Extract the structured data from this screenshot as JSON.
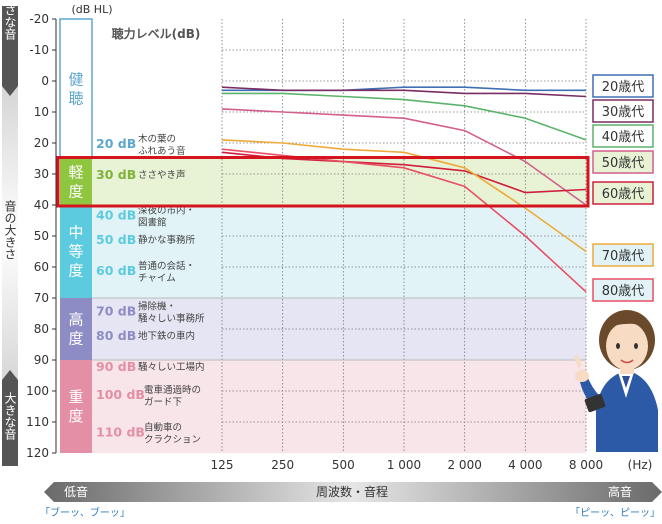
{
  "colors": {
    "kenchou": "#ffffff",
    "keido": "#e8f2d4",
    "chutou": "#e1f3f7",
    "koudo": "#e6e5f3",
    "juudo": "#f8e5ea",
    "kenchou_label": "#5da7cf",
    "keido_label": "#8fc63f",
    "chutou_label": "#5ccbe0",
    "koudo_label": "#8d8cc4",
    "juudo_label": "#e48fa5",
    "highlight": "#d4151d"
  },
  "side": {
    "top_label": "小さな音",
    "middle_label": "音の大きさ",
    "bottom_label": "大きな音"
  },
  "header": {
    "unit": "(dB HL)",
    "legend_title": "聴力レベル(dB)"
  },
  "zones": [
    {
      "label": "健聴",
      "from": -20,
      "to": 25,
      "color_key": "kenchou"
    },
    {
      "label": "軽度",
      "from": 25,
      "to": 40,
      "color_key": "keido"
    },
    {
      "label": "中等度",
      "from": 40,
      "to": 70,
      "color_key": "chutou"
    },
    {
      "label": "高度",
      "from": 70,
      "to": 90,
      "color_key": "koudo"
    },
    {
      "label": "重度",
      "from": 90,
      "to": 120,
      "color_key": "juudo"
    }
  ],
  "examples": [
    {
      "db": "20 dB",
      "text": [
        "木の葉の",
        "ふれあう音"
      ],
      "level": 20,
      "color": "#5da7cf"
    },
    {
      "db": "30 dB",
      "text": [
        "ささやき声"
      ],
      "level": 30,
      "color": "#7fb33a"
    },
    {
      "db": "40 dB",
      "text": [
        "深夜の市内・",
        "図書館"
      ],
      "level": 43,
      "color": "#5ccbe0"
    },
    {
      "db": "50 dB",
      "text": [
        "静かな事務所"
      ],
      "level": 51,
      "color": "#5ccbe0"
    },
    {
      "db": "60 dB",
      "text": [
        "普通の会話・",
        "チャイム"
      ],
      "level": 61,
      "color": "#5ccbe0"
    },
    {
      "db": "70 dB",
      "text": [
        "掃除機・",
        "騒々しい事務所"
      ],
      "level": 74,
      "color": "#8d8cc4"
    },
    {
      "db": "80 dB",
      "text": [
        "地下鉄の車内"
      ],
      "level": 82,
      "color": "#8d8cc4"
    },
    {
      "db": "90 dB",
      "text": [
        "騒々しい工場内"
      ],
      "level": 92,
      "color": "#e48fa5"
    },
    {
      "db": "100 dB",
      "text": [
        "電車通過時の",
        "ガード下"
      ],
      "level": 101,
      "color": "#e48fa5"
    },
    {
      "db": "110 dB",
      "text": [
        "自動車の",
        "クラクション"
      ],
      "level": 113,
      "color": "#e48fa5"
    }
  ],
  "x_axis": {
    "low_label": "低音",
    "center_label": "周波数・音程",
    "high_label": "高音",
    "low_sound": "「ブーッ、ブーッ」",
    "high_sound": "「ピーッ、ピーッ」",
    "unit": "(Hz)"
  },
  "chart_data": {
    "type": "line",
    "x": [
      125,
      250,
      500,
      1000,
      2000,
      4000,
      8000
    ],
    "x_tick_labels": [
      "125",
      "250",
      "500",
      "1 000",
      "2 000",
      "4 000",
      "8 000"
    ],
    "x_scale": "log",
    "y_ticks": [
      -20,
      -10,
      0,
      10,
      20,
      30,
      40,
      50,
      60,
      70,
      80,
      90,
      100,
      110,
      120
    ],
    "ylim": [
      -20,
      120
    ],
    "y_inverted": true,
    "grid": true,
    "legend_placement": "right",
    "series": [
      {
        "name": "20歳代",
        "color": "#3f6fb5",
        "values": [
          3,
          3,
          3,
          2,
          2,
          3,
          3
        ]
      },
      {
        "name": "30歳代",
        "color": "#7a2d63",
        "values": [
          2,
          3,
          3,
          3,
          4,
          4,
          5
        ]
      },
      {
        "name": "40歳代",
        "color": "#5cb46c",
        "values": [
          4,
          4,
          5,
          6,
          8,
          12,
          19
        ]
      },
      {
        "name": "50歳代",
        "color": "#d45f8d",
        "values": [
          9,
          10,
          11,
          12,
          16,
          26,
          40
        ]
      },
      {
        "name": "60歳代",
        "color": "#d01e3c",
        "values": [
          23,
          25,
          26,
          27,
          29,
          36,
          35
        ]
      },
      {
        "name": "70歳代",
        "color": "#eeaa3a",
        "values": [
          19,
          20,
          22,
          23,
          28,
          41,
          55
        ]
      },
      {
        "name": "80歳代",
        "color": "#e94f63",
        "values": [
          22,
          24,
          26,
          28,
          34,
          50,
          68
        ]
      }
    ],
    "highlight_range": [
      25,
      40
    ]
  }
}
